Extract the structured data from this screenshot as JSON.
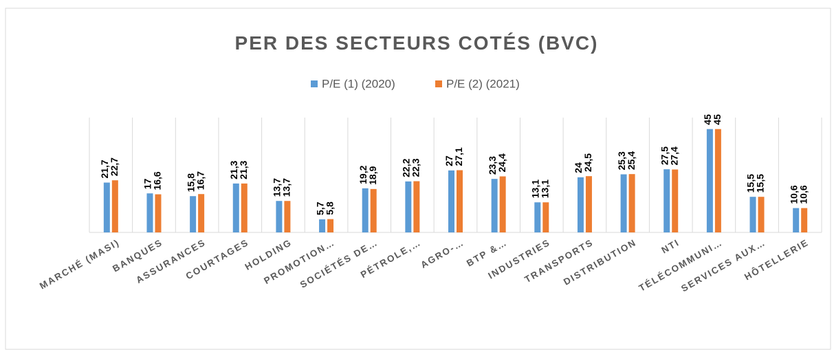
{
  "chart_data": {
    "type": "bar",
    "title": "PER DES SECTEURS COTÉS (BVC)",
    "categories": [
      "MARCHÉ (MASI)",
      "BANQUES",
      "ASSURANCES",
      "COURTAGES",
      "HOLDING",
      "PROMOTION…",
      "SOCIÉTÉS DE…",
      "PÉTROLE,…",
      "AGRO-…",
      "BTP &…",
      "INDUSTRIES",
      "TRANSPORTS",
      "DISTRIBUTION",
      "NTI",
      "TÉLÉCOMMUNI…",
      "SERVICES AUX…",
      "HÔTELLERIE"
    ],
    "series": [
      {
        "name": "P/E (1) (2020)",
        "color": "#5b9bd5",
        "values": [
          21.7,
          17,
          15.8,
          21.3,
          13.7,
          5.7,
          19.2,
          22.2,
          27,
          23.3,
          13.1,
          24,
          25.3,
          27.5,
          45,
          15.5,
          10.6
        ],
        "value_labels": [
          "21,7",
          "17",
          "15,8",
          "21,3",
          "13,7",
          "5,7",
          "19,2",
          "22,2",
          "27",
          "23,3",
          "13,1",
          "24",
          "25,3",
          "27,5",
          "45",
          "15,5",
          "10,6"
        ]
      },
      {
        "name": "P/E (2) (2021)",
        "color": "#ed7d31",
        "values": [
          22.7,
          16.6,
          16.7,
          21.3,
          13.7,
          5.8,
          18.9,
          22.3,
          27.1,
          24.4,
          13.1,
          24.5,
          25.4,
          27.4,
          45,
          15.5,
          10.6
        ],
        "value_labels": [
          "22,7",
          "16,6",
          "16,7",
          "21,3",
          "13,7",
          "5,8",
          "18,9",
          "22,3",
          "27,1",
          "24,4",
          "13,1",
          "24,5",
          "25,4",
          "27,4",
          "45",
          "15,5",
          "10,6"
        ]
      }
    ],
    "ylim": [
      0,
      50
    ],
    "legend": "top"
  }
}
